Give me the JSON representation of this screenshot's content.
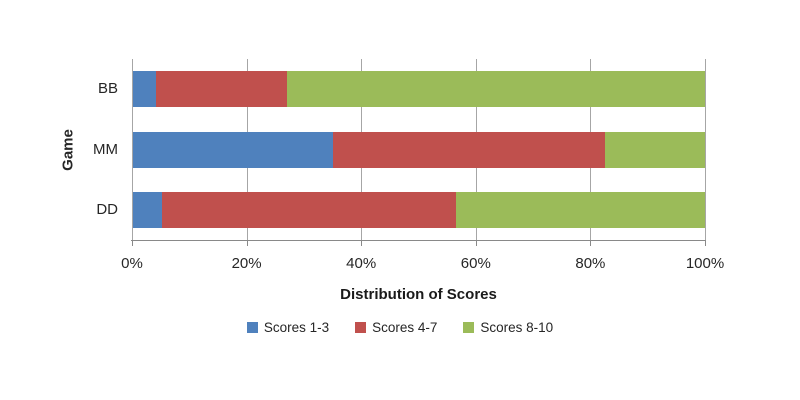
{
  "chart_data": {
    "type": "bar",
    "orientation": "horizontal",
    "stacked": true,
    "xlabel": "Distribution of Scores",
    "ylabel": "Game",
    "categories": [
      "BB",
      "MM",
      "DD"
    ],
    "series": [
      {
        "name": "Scores 1-3",
        "color": "#4F81BD",
        "values": [
          4,
          35,
          5
        ]
      },
      {
        "name": "Scores 4-7",
        "color": "#C0504D",
        "values": [
          23,
          47.5,
          51.5
        ]
      },
      {
        "name": "Scores 8-10",
        "color": "#9BBB59",
        "values": [
          73,
          17.5,
          43.5
        ]
      }
    ],
    "xlim": [
      0,
      100
    ],
    "x_ticks": [
      {
        "label": "0%",
        "value": 0
      },
      {
        "label": "20%",
        "value": 20
      },
      {
        "label": "40%",
        "value": 40
      },
      {
        "label": "60%",
        "value": 60
      },
      {
        "label": "80%",
        "value": 80
      },
      {
        "label": "100%",
        "value": 100
      }
    ],
    "grid": "vertical",
    "legend_position": "bottom"
  },
  "colors": {
    "background": "#FFFFFF",
    "gridline": "#A6A6A6",
    "axis_line": "#898989",
    "text": "#262626"
  }
}
